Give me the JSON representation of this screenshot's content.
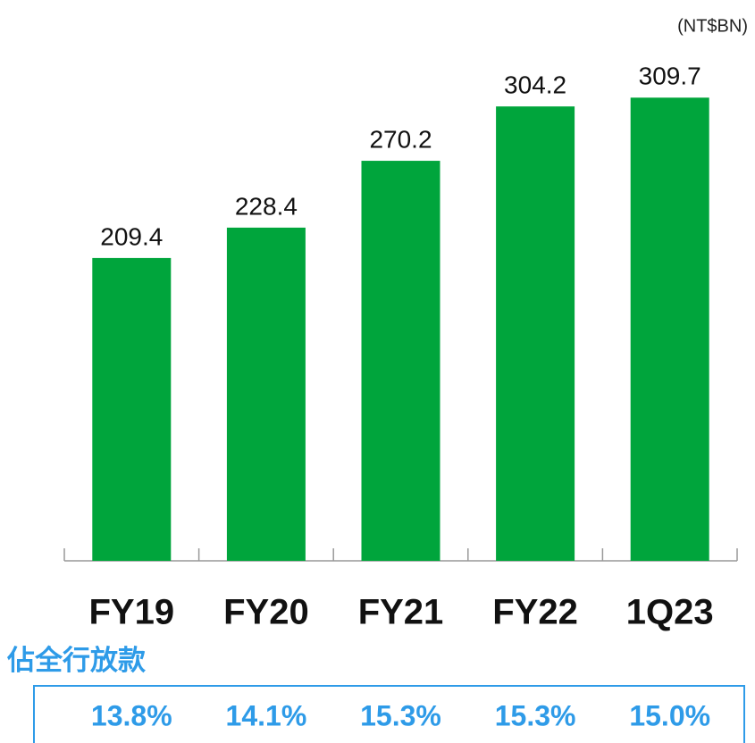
{
  "chart_data": {
    "type": "bar",
    "unit": "(NT$BN)",
    "categories": [
      "FY19",
      "FY20",
      "FY21",
      "FY22",
      "1Q23"
    ],
    "values": [
      209.4,
      228.4,
      270.2,
      304.2,
      309.7
    ],
    "color": "#00a53c",
    "ylim": [
      20,
      330
    ],
    "share": {
      "label": "佔全行放款",
      "values": [
        13.8,
        14.1,
        15.3,
        15.3,
        15.0
      ],
      "value_labels": [
        "13.8%",
        "14.1%",
        "15.3%",
        "15.3%",
        "15.0%"
      ],
      "color": "#2e9be8"
    }
  }
}
